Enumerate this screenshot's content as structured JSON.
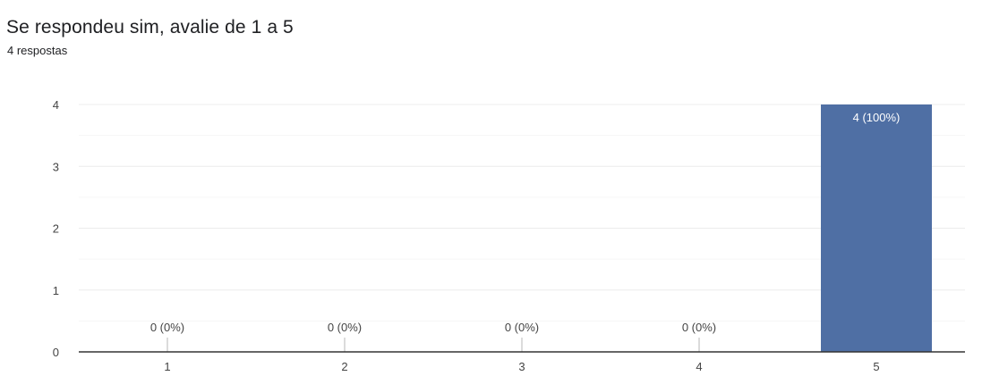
{
  "title": "Se respondeu sim, avalie de 1 a 5",
  "subtitle": "4 respostas",
  "chart_data": {
    "type": "bar",
    "title": "Se respondeu sim, avalie de 1 a 5",
    "xlabel": "",
    "ylabel": "",
    "categories": [
      "1",
      "2",
      "3",
      "4",
      "5"
    ],
    "values": [
      0,
      0,
      0,
      0,
      4
    ],
    "data_labels": [
      "0 (0%)",
      "0 (0%)",
      "0 (0%)",
      "0 (0%)",
      "4 (100%)"
    ],
    "ylim": [
      0,
      4
    ],
    "yticks": [
      "0",
      "1",
      "2",
      "3",
      "4"
    ],
    "grid": true,
    "legend": "none",
    "bar_color": "#4f6fa4",
    "grid_color": "#ececec",
    "axis_color": "#333333",
    "label_color": "#444444"
  }
}
